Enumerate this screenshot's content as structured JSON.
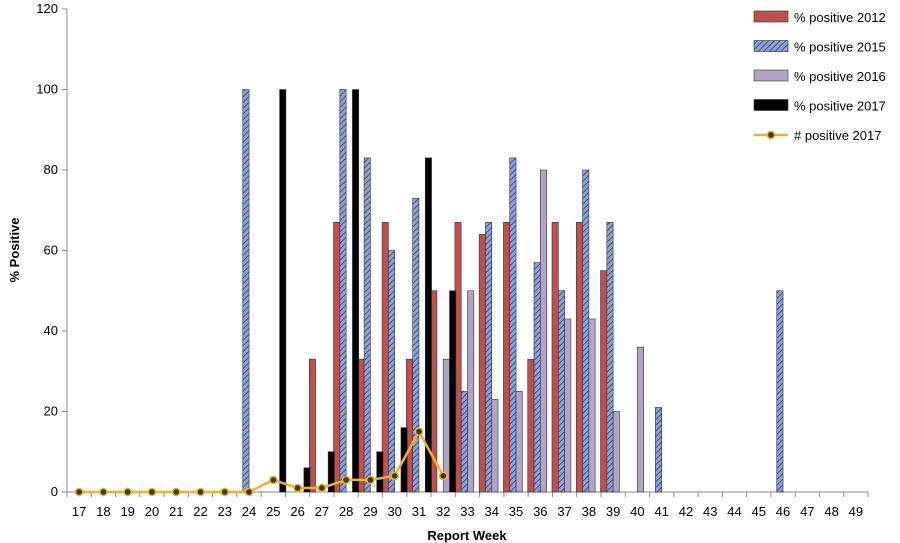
{
  "chart_data": {
    "type": "bar",
    "title": "",
    "xlabel": "Report Week",
    "ylabel": "% Positive",
    "ylim": [
      0,
      120
    ],
    "yticks": [
      0,
      20,
      40,
      60,
      80,
      100,
      120
    ],
    "categories": [
      "17",
      "18",
      "19",
      "20",
      "21",
      "22",
      "23",
      "24",
      "25",
      "26",
      "27",
      "28",
      "29",
      "30",
      "31",
      "32",
      "33",
      "34",
      "35",
      "36",
      "37",
      "38",
      "39",
      "40",
      "41",
      "42",
      "43",
      "44",
      "45",
      "46",
      "47",
      "48",
      "49"
    ],
    "series": [
      {
        "name": "% positive 2012",
        "kind": "bar",
        "color": "#c0504d",
        "values": [
          null,
          null,
          null,
          null,
          null,
          null,
          null,
          null,
          null,
          null,
          33,
          67,
          33,
          67,
          33,
          50,
          67,
          64,
          67,
          33,
          67,
          67,
          55,
          null,
          null,
          null,
          null,
          null,
          null,
          null,
          null,
          null,
          null
        ]
      },
      {
        "name": "% positive 2015",
        "kind": "bar",
        "color": "#8ea2d6",
        "values": [
          null,
          null,
          null,
          null,
          null,
          null,
          null,
          100,
          null,
          null,
          null,
          100,
          83,
          60,
          73,
          null,
          25,
          67,
          83,
          57,
          50,
          80,
          67,
          null,
          21,
          null,
          null,
          null,
          null,
          50,
          null,
          null,
          null
        ]
      },
      {
        "name": "% positive 2016",
        "kind": "bar",
        "color": "#b3a2c7",
        "values": [
          null,
          null,
          null,
          null,
          null,
          null,
          null,
          null,
          null,
          null,
          null,
          null,
          null,
          null,
          null,
          33,
          50,
          23,
          25,
          80,
          43,
          43,
          20,
          36,
          null,
          null,
          null,
          null,
          null,
          null,
          null,
          null,
          null
        ]
      },
      {
        "name": "% positive 2017",
        "kind": "bar",
        "color": "#000000",
        "values": [
          null,
          null,
          null,
          null,
          null,
          null,
          null,
          null,
          100,
          6,
          10,
          100,
          10,
          16,
          83,
          50,
          null,
          null,
          null,
          null,
          null,
          null,
          null,
          null,
          null,
          null,
          null,
          null,
          null,
          null,
          null,
          null,
          null
        ]
      },
      {
        "name": "# positive 2017",
        "kind": "line",
        "color": "#f0b323",
        "values": [
          0,
          0,
          0,
          0,
          0,
          0,
          0,
          0,
          3,
          1,
          1,
          3,
          3,
          4,
          15,
          4,
          null,
          null,
          null,
          null,
          null,
          null,
          null,
          null,
          null,
          null,
          null,
          null,
          null,
          null,
          null,
          null,
          null
        ]
      }
    ],
    "legend": "top-right"
  }
}
